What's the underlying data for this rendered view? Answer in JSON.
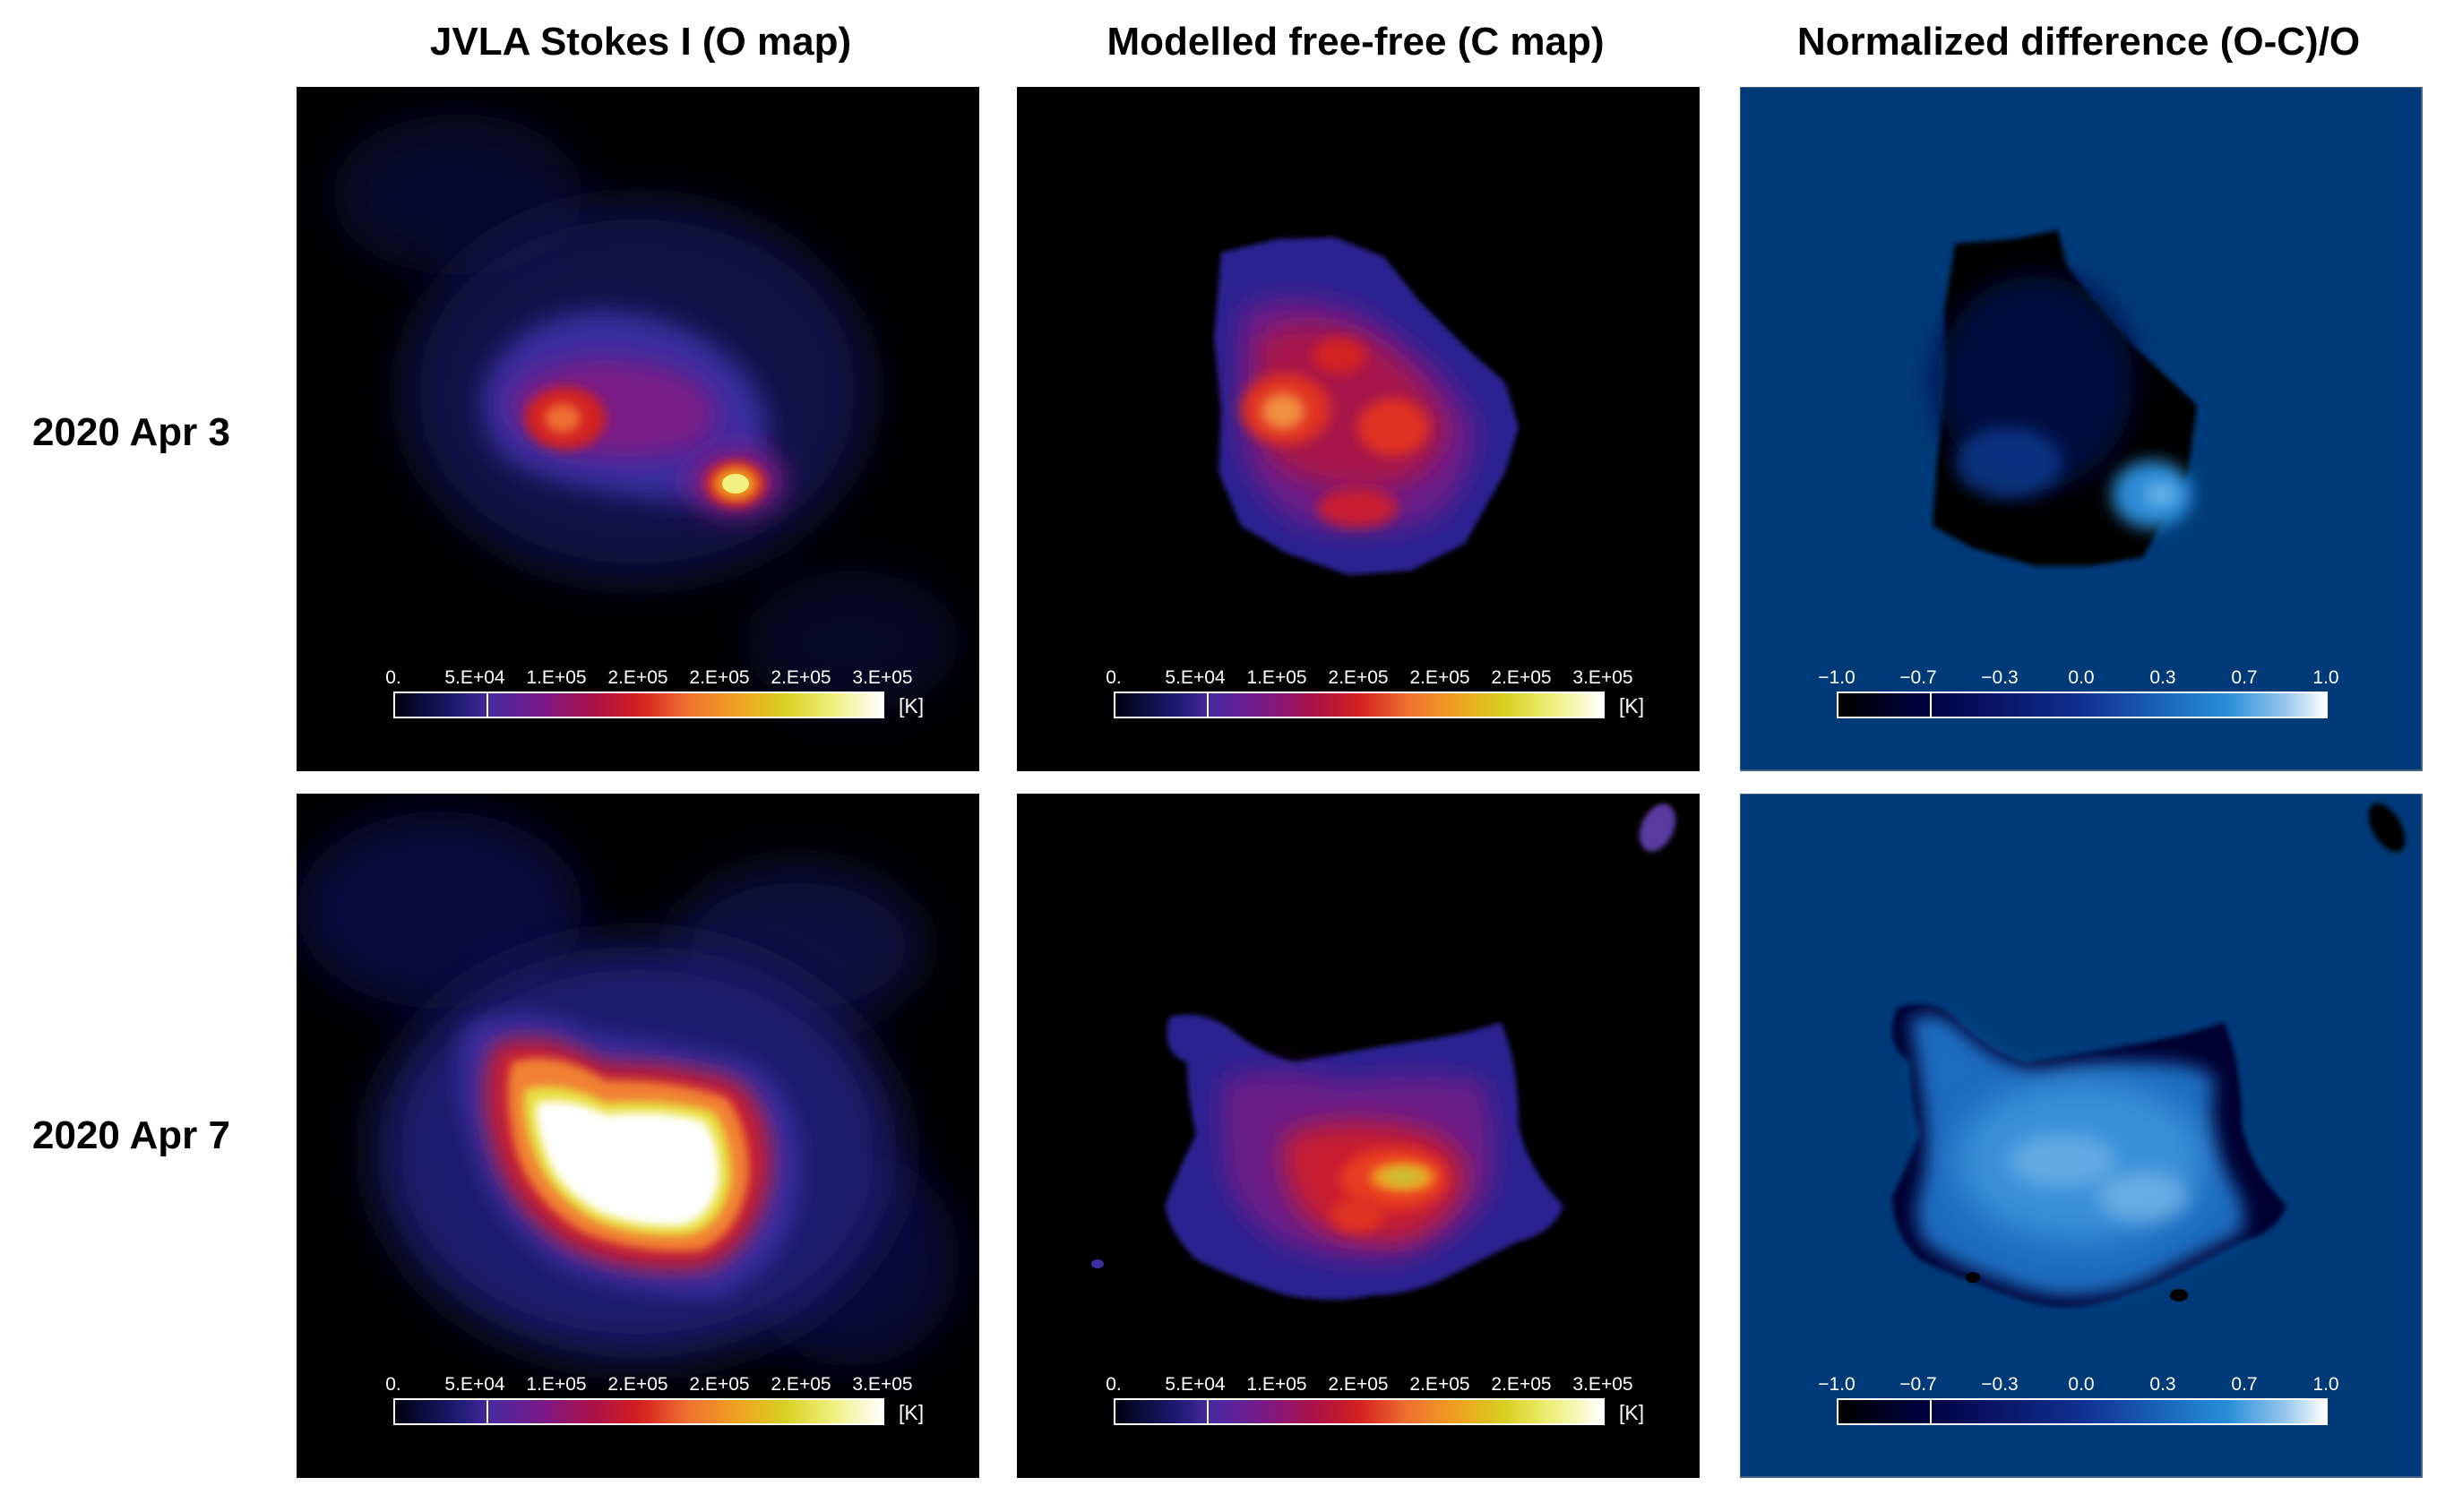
{
  "columns": [
    {
      "title": "JVLA Stokes I (O map)"
    },
    {
      "title": "Modelled free-free (C map)"
    },
    {
      "title": "Normalized difference (O-C)/O"
    }
  ],
  "rows": [
    {
      "label": "2020 Apr 3"
    },
    {
      "label": "2020 Apr 7"
    }
  ],
  "temperature_colorbar": {
    "ticks": [
      "0.",
      "5.E+04",
      "1.E+05",
      "2.E+05",
      "2.E+05",
      "2.E+05",
      "3.E+05"
    ],
    "unit": "[K]"
  },
  "difference_colorbar": {
    "ticks": [
      "−1.0",
      "−0.7",
      "−0.3",
      "0.0",
      "0.3",
      "0.7",
      "1.0"
    ]
  },
  "colors": {
    "map_background": "#000000",
    "difference_background": "#003a78"
  }
}
